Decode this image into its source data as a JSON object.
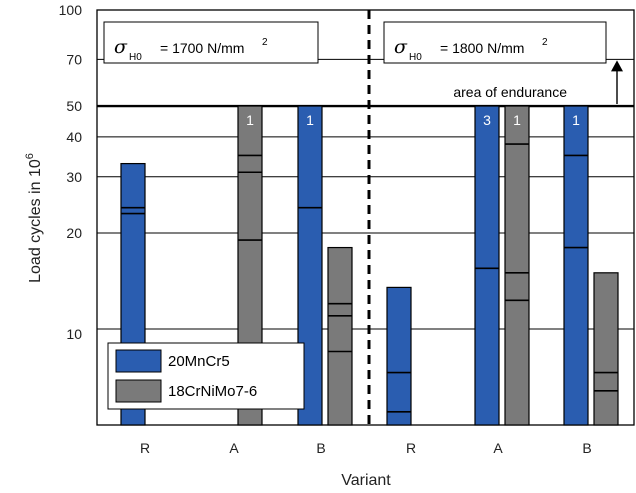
{
  "chart_data": {
    "type": "bar",
    "y_axis": {
      "label_prefix": "Load cycles in 10",
      "label_exponent": "6",
      "scale": "log",
      "ylim": [
        5,
        100
      ],
      "tick_values": [
        10,
        20,
        30,
        40,
        50,
        70,
        100
      ],
      "tick_labels": [
        "10",
        "20",
        "30",
        "40",
        "50",
        "70",
        "100"
      ],
      "gridlines": [
        10,
        20,
        30,
        40,
        50,
        70,
        100
      ]
    },
    "x_axis": {
      "label": "Variant",
      "categories": [
        "R",
        "A",
        "B",
        "R",
        "A",
        "B"
      ]
    },
    "series": [
      {
        "name": "20MnCr5",
        "color": "#2a5db0"
      },
      {
        "name": "18CrNiMo7-6",
        "color": "#7a7a7a"
      }
    ],
    "groups": [
      {
        "stress": {
          "symbol": "σ",
          "subscript": "H0",
          "value": "= 1700 N/mm",
          "exponent": "2"
        },
        "variants": [
          {
            "category": "R",
            "bars": [
              {
                "series": "20MnCr5",
                "top": 33,
                "marks": [
                  24,
                  23
                ]
              },
              {
                "series": "18CrNiMo7-6",
                "top": null,
                "marks": []
              }
            ]
          },
          {
            "category": "A",
            "bars": [
              {
                "series": "20MnCr5",
                "top": null,
                "marks": []
              },
              {
                "series": "18CrNiMo7-6",
                "top": 50,
                "marks": [
                  35,
                  31,
                  19
                ],
                "count": "1"
              }
            ]
          },
          {
            "category": "B",
            "bars": [
              {
                "series": "20MnCr5",
                "top": 50,
                "marks": [
                  24
                ],
                "count": "1"
              },
              {
                "series": "18CrNiMo7-6",
                "top": 18,
                "marks": [
                  12,
                  11,
                  8.5
                ]
              }
            ]
          }
        ]
      },
      {
        "stress": {
          "symbol": "σ",
          "subscript": "H0",
          "value": "= 1800 N/mm",
          "exponent": "2"
        },
        "variants": [
          {
            "category": "R",
            "bars": [
              {
                "series": "20MnCr5",
                "top": 13.5,
                "marks": [
                  7.3,
                  5.5
                ]
              },
              {
                "series": "18CrNiMo7-6",
                "top": null,
                "marks": []
              }
            ]
          },
          {
            "category": "A",
            "bars": [
              {
                "series": "20MnCr5",
                "top": 50,
                "marks": [
                  15.5
                ],
                "count": "3"
              },
              {
                "series": "18CrNiMo7-6",
                "top": 50,
                "marks": [
                  38,
                  15,
                  12.3
                ],
                "count": "1"
              }
            ]
          },
          {
            "category": "B",
            "bars": [
              {
                "series": "20MnCr5",
                "top": 50,
                "marks": [
                  35,
                  18
                ],
                "count": "1"
              },
              {
                "series": "18CrNiMo7-6",
                "top": 15,
                "marks": [
                  7.3,
                  6.4
                ]
              }
            ]
          }
        ]
      }
    ],
    "annotations": {
      "endurance_level": 50,
      "endurance_label": "area of endurance"
    },
    "legend": {
      "placement": "bottom-left"
    }
  }
}
